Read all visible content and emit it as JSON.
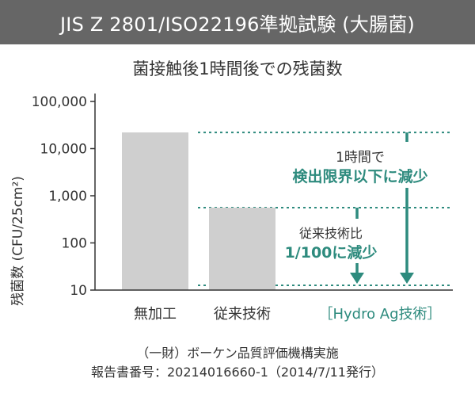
{
  "header": {
    "title": "JIS Z 2801/ISO22196準拠試験 (大腸菌)"
  },
  "chart_data": {
    "type": "bar",
    "title": "菌接触後1時間後での残菌数",
    "ylabel": "残菌数 (CFU/25cm²)",
    "yscale": "log",
    "ylim": [
      10,
      100000
    ],
    "yticks": [
      {
        "value": 10,
        "label": "10"
      },
      {
        "value": 100,
        "label": "100"
      },
      {
        "value": 1000,
        "label": "1,000"
      },
      {
        "value": 10000,
        "label": "10,000"
      },
      {
        "value": 100000,
        "label": "100,000"
      }
    ],
    "categories": [
      "無加工",
      "従来技術",
      "［Hydro Ag技術］"
    ],
    "values": [
      22000,
      560,
      10
    ],
    "category_colors": [
      "#333333",
      "#333333",
      "#2e8b7e"
    ],
    "bar_color": "#cfcfcf",
    "accent_color": "#2e8b7e",
    "annotations": [
      {
        "lines": [
          "1時間で",
          "検出限界以下に減少"
        ]
      },
      {
        "lines": [
          "従来技術比",
          "1/100に減少"
        ]
      }
    ]
  },
  "footer": {
    "line1": "（一財）ボーケン品質評価機構実施",
    "line2": "報告書番号：20214016660-1（2014/7/11発行）"
  }
}
